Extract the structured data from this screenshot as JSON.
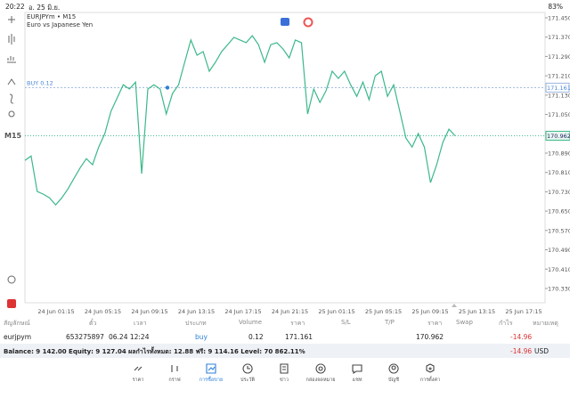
{
  "status_bar": {
    "time": "20:22",
    "date": "อ. 25 มิ.ย.",
    "battery": "83%"
  },
  "chart_header": {
    "symbol": "EURJPYm • M15",
    "description": "Euro vs Japanese Yen",
    "timeframe": "M15"
  },
  "price_chart": {
    "type": "line",
    "color": "#3cb88a",
    "values": [
      170.86,
      170.878,
      170.731,
      170.72,
      170.705,
      170.676,
      170.705,
      170.742,
      170.786,
      170.83,
      170.867,
      170.842,
      170.915,
      170.971,
      171.063,
      171.118,
      171.173,
      171.155,
      171.184,
      170.805,
      171.155,
      171.173,
      171.155,
      171.052,
      171.136,
      171.173,
      171.266,
      171.358,
      171.295,
      171.31,
      171.229,
      171.266,
      171.31,
      171.339,
      171.369,
      171.358,
      171.347,
      171.376,
      171.339,
      171.266,
      171.339,
      171.347,
      171.321,
      171.284,
      171.358,
      171.347,
      171.052,
      171.155,
      171.1,
      171.148,
      171.229,
      171.199,
      171.229,
      171.173,
      171.125,
      171.184,
      171.111,
      171.21,
      171.229,
      171.125,
      171.173,
      171.063,
      170.952,
      170.915,
      170.971,
      170.915,
      170.768,
      170.842,
      170.934,
      170.989,
      170.962
    ],
    "ylim": [
      170.271,
      171.472
    ],
    "yticks": [
      {
        "value": 171.45,
        "label": "171.450"
      },
      {
        "value": 171.37,
        "label": "171.370"
      },
      {
        "value": 171.29,
        "label": "171.290"
      },
      {
        "value": 171.21,
        "label": "171.210"
      },
      {
        "value": 171.13,
        "label": "171.130"
      },
      {
        "value": 171.05,
        "label": "171.050"
      },
      {
        "value": 170.97,
        "label": "170.970"
      },
      {
        "value": 170.89,
        "label": "170.890"
      },
      {
        "value": 170.81,
        "label": "170.810"
      },
      {
        "value": 170.73,
        "label": "170.730"
      },
      {
        "value": 170.65,
        "label": "170.650"
      },
      {
        "value": 170.57,
        "label": "170.570"
      },
      {
        "value": 170.49,
        "label": "170.490"
      },
      {
        "value": 170.41,
        "label": "170.410"
      },
      {
        "value": 170.33,
        "label": "170.330"
      }
    ],
    "x_labels": [
      "24 Jun 01:15",
      "24 Jun 05:15",
      "24 Jun 09:15",
      "24 Jun 13:15",
      "24 Jun 17:15",
      "24 Jun 21:15",
      "25 Jun 01:15",
      "25 Jun 05:15",
      "25 Jun 09:15",
      "25 Jun 13:15",
      "25 Jun 17:15"
    ],
    "position": {
      "label": "BUY 0.12",
      "price": 171.161
    },
    "bid": 170.962
  },
  "table": {
    "headers": [
      "สัญลักษณ์",
      "ตั๋ว",
      "เวลา",
      "ประเภท",
      "Volume",
      "ราคา",
      "S/L",
      "T/P",
      "ราคา",
      "Swap",
      "กำไร",
      "หมายเหตุ"
    ],
    "row": {
      "symbol": "eurjpym",
      "ticket": "653275897",
      "time": "06.24 12:24",
      "type": "buy",
      "volume": "0.12",
      "open_price": "171.161",
      "price": "170.962",
      "profit": "-14.96"
    },
    "summary": {
      "text": "Balance: 9 142.00 Equity: 9 127.04 ผลกำไรทั้งหมด: 12.88 ฟรี: 9 114.16 Level: 70 862.11%",
      "profit": "-14.96",
      "currency": "USD"
    }
  },
  "nav": [
    "ราคา",
    "กราฟ",
    "การซื้อขาย",
    "ประวัติ",
    "ข่าว",
    "กล่องจดหมาย",
    "แชท",
    "บัญชี",
    "การตั้งค่า"
  ]
}
